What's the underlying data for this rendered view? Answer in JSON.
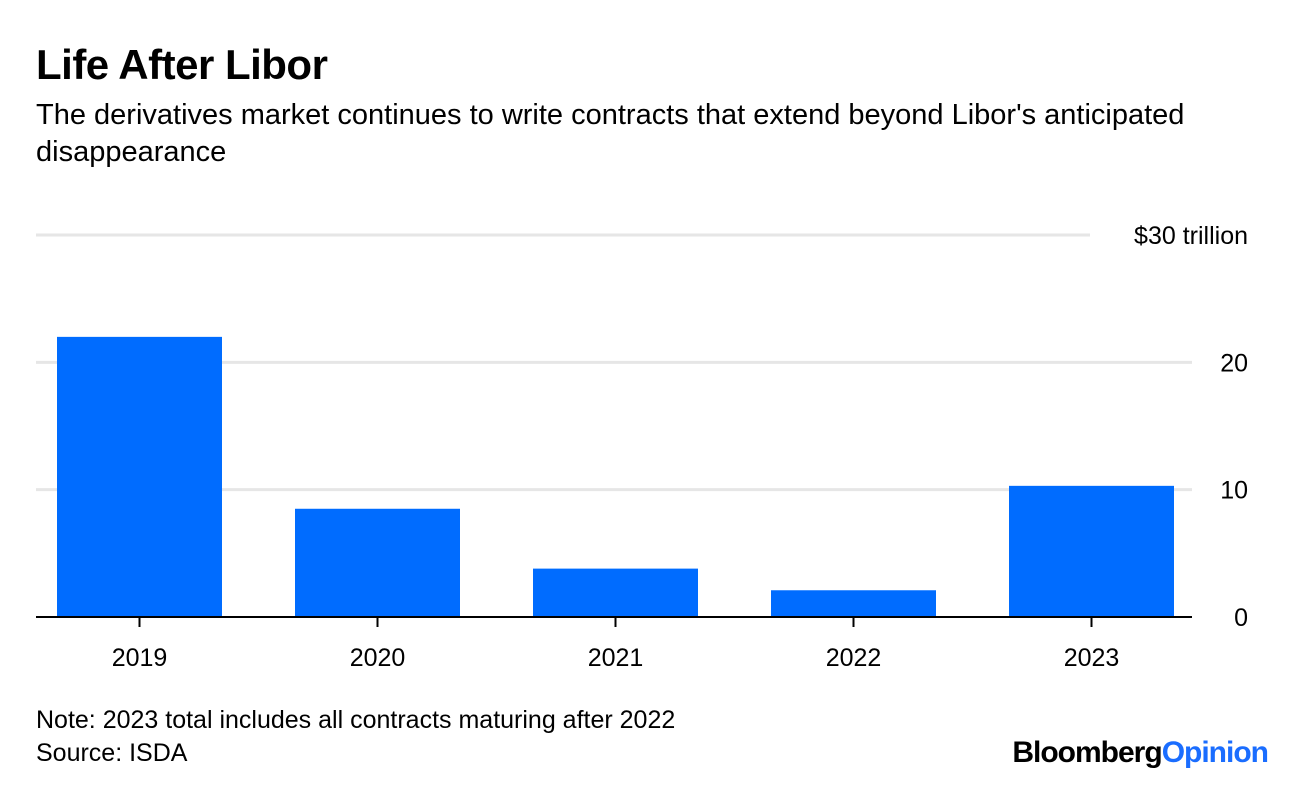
{
  "header": {
    "title": "Life After Libor",
    "subtitle": "The derivatives market continues to write contracts that extend beyond Libor's anticipated disappearance"
  },
  "footer": {
    "note": "Note: 2023 total includes all contracts maturing after 2022",
    "source": "Source: ISDA",
    "brand_main": "Bloomberg",
    "brand_accent": "Opinion"
  },
  "colors": {
    "bar": "#006cff",
    "grid": "#e6e6e6",
    "axis": "#000000",
    "brand_accent": "#1a6dff"
  },
  "chart_data": {
    "type": "bar",
    "title": "Life After Libor",
    "categories": [
      "2019",
      "2020",
      "2021",
      "2022",
      "2023"
    ],
    "values": [
      22.0,
      8.5,
      3.8,
      2.1,
      10.3
    ],
    "ylim": [
      0,
      30
    ],
    "yticks": [
      0,
      10,
      20,
      30
    ],
    "ytick_labels": [
      "0",
      "10",
      "20",
      "$30 trillion"
    ],
    "xlabel": "",
    "ylabel": "",
    "grid": true,
    "yaxis_side": "right"
  }
}
